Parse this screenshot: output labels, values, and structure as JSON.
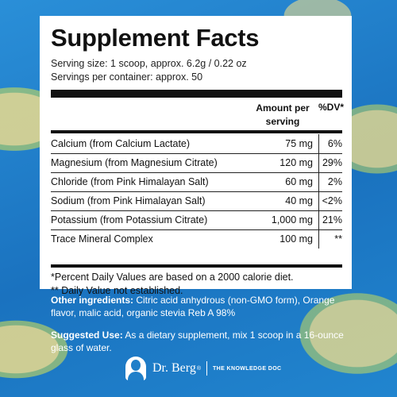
{
  "panel": {
    "title": "Supplement Facts",
    "serving_size": "Serving size: 1 scoop, approx. 6.2g / 0.22 oz",
    "servings_per_container": "Servings per container: approx. 50",
    "header": {
      "amount_line1": "Amount per",
      "amount_line2": "serving",
      "dv": "%DV*"
    },
    "rows": [
      {
        "name": "Calcium (from Calcium Lactate)",
        "amount": "75 mg",
        "dv": "6%"
      },
      {
        "name": "Magnesium (from Magnesium Citrate)",
        "amount": "120 mg",
        "dv": "29%"
      },
      {
        "name": "Chloride (from Pink Himalayan Salt)",
        "amount": "60 mg",
        "dv": "2%"
      },
      {
        "name": "Sodium (from Pink Himalayan Salt)",
        "amount": "40 mg",
        "dv": "<2%"
      },
      {
        "name": "Potassium (from Potassium Citrate)",
        "amount": "1,000 mg",
        "dv": "21%"
      },
      {
        "name": "Trace Mineral Complex",
        "amount": "100 mg",
        "dv": "**"
      }
    ],
    "footnote1": "*Percent Daily Values are based on a 2000 calorie diet.",
    "footnote2": "** Daily Value not established."
  },
  "other_ingredients": {
    "label": "Other ingredients:",
    "text": " Citric acid anhydrous (non-GMO form), Orange flavor, malic acid, organic stevia Reb A 98%"
  },
  "suggested_use": {
    "label": "Suggested Use:",
    "text": " As a dietary supplement, mix 1 scoop in a 16-ounce glass of water."
  },
  "brand": {
    "name": "Dr. Berg",
    "registered": "®",
    "tagline": "THE KNOWLEDGE DOC"
  },
  "colors": {
    "background": "#1f7fc9",
    "panel": "#ffffff",
    "text": "#111111"
  }
}
